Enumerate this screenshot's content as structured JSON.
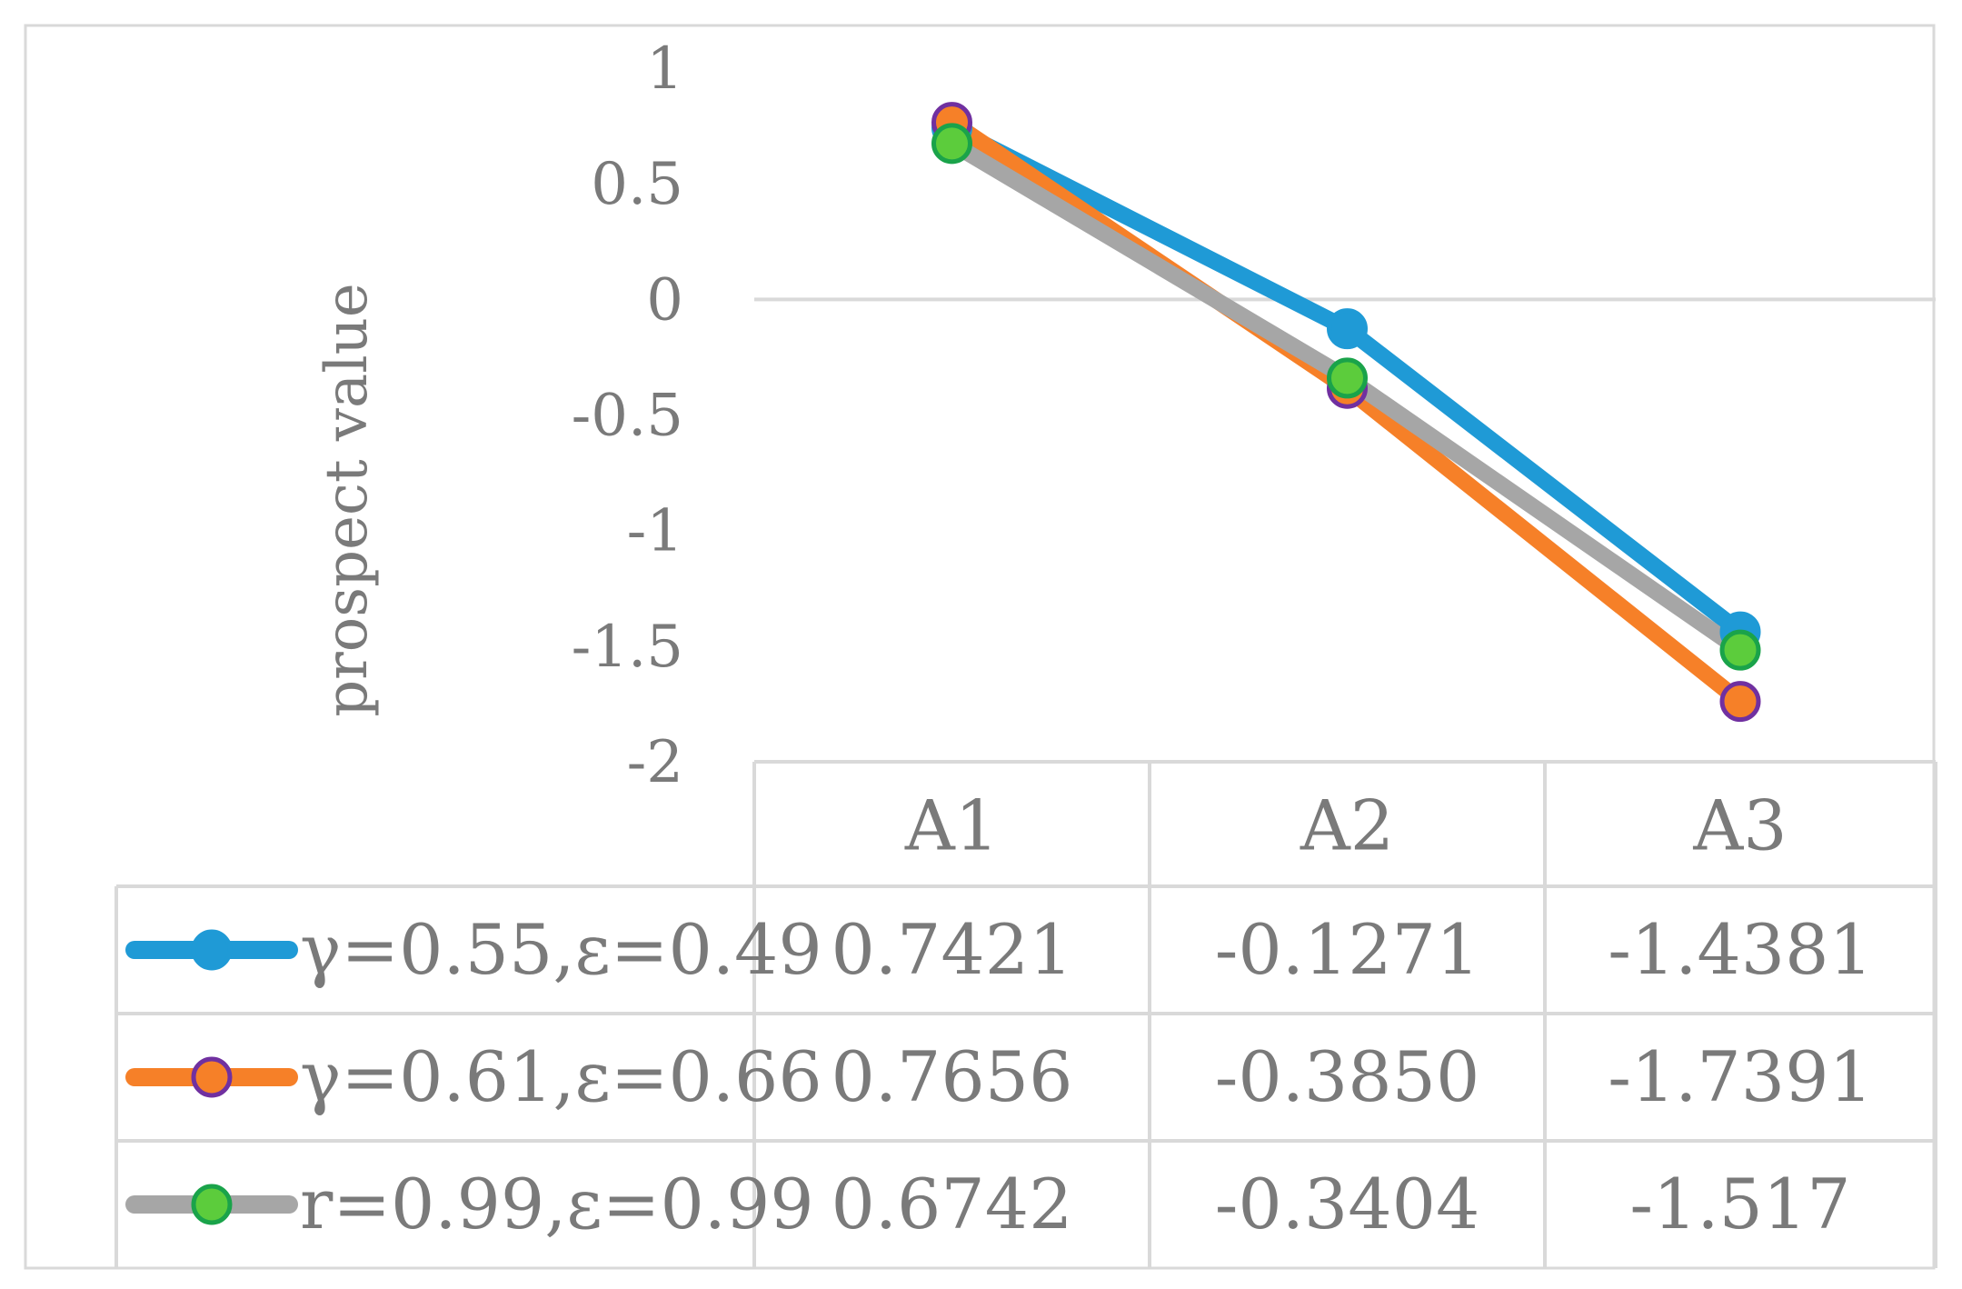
{
  "chart_data": {
    "type": "line",
    "title": "",
    "xlabel": "",
    "ylabel": "prospect value",
    "ylim": [
      -2,
      1
    ],
    "yticks": [
      "1",
      "0.5",
      "0",
      "-0.5",
      "-1",
      "-1.5",
      "-2"
    ],
    "categories": [
      "A1",
      "A2",
      "A3"
    ],
    "series": [
      {
        "name": "γ=0.55,ε=0.49",
        "values": [
          0.7421,
          -0.1271,
          -1.4381
        ],
        "labels": [
          "0.7421",
          "-0.1271",
          "-1.4381"
        ],
        "line_color": "#1f9ad6",
        "marker_fill": "#1f9ad6",
        "marker_stroke": "#1f9ad6"
      },
      {
        "name": "γ=0.61,ε=0.66",
        "values": [
          0.7656,
          -0.385,
          -1.7391
        ],
        "labels": [
          "0.7656",
          "-0.3850",
          "-1.7391"
        ],
        "line_color": "#f68028",
        "marker_fill": "#f68028",
        "marker_stroke": "#7030a0"
      },
      {
        "name": "r=0.99,ε=0.99",
        "values": [
          0.6742,
          -0.3404,
          -1.517
        ],
        "labels": [
          "0.6742",
          "-0.3404",
          "-1.517"
        ],
        "line_color": "#a6a6a6",
        "marker_fill": "#5ccc3c",
        "marker_stroke": "#1aa34a"
      }
    ],
    "grid": "zero-line-only",
    "legend": "data-table"
  }
}
